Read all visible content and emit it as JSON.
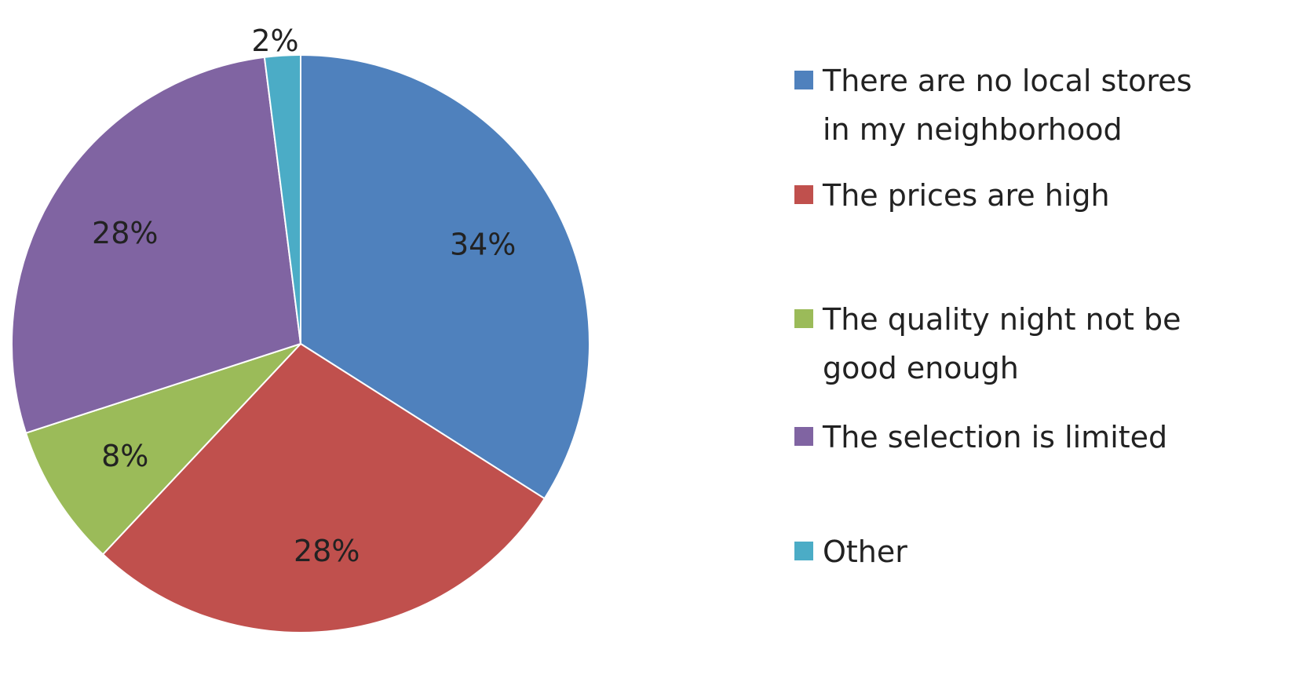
{
  "chart_data": {
    "type": "pie",
    "title": "",
    "legend_position": "right",
    "slices": [
      {
        "label": "There are no local stores in my neighborhood",
        "legend_lines": [
          "There are no local stores",
          "in my neighborhood"
        ],
        "value": 34,
        "display": "34%",
        "color": "#4F81BD"
      },
      {
        "label": "The prices are high",
        "legend_lines": [
          "The prices are high"
        ],
        "value": 28,
        "display": "28%",
        "color": "#C0504D"
      },
      {
        "label": "The quality night not be good enough",
        "legend_lines": [
          "The quality night not be",
          "good enough"
        ],
        "value": 8,
        "display": "8%",
        "color": "#9BBB59"
      },
      {
        "label": "The selection is limited",
        "legend_lines": [
          "The selection is limited"
        ],
        "value": 28,
        "display": "28%",
        "color": "#8064A2"
      },
      {
        "label": "Other",
        "legend_lines": [
          "Other"
        ],
        "value": 2,
        "display": "2%",
        "color": "#4BACC6"
      }
    ]
  }
}
